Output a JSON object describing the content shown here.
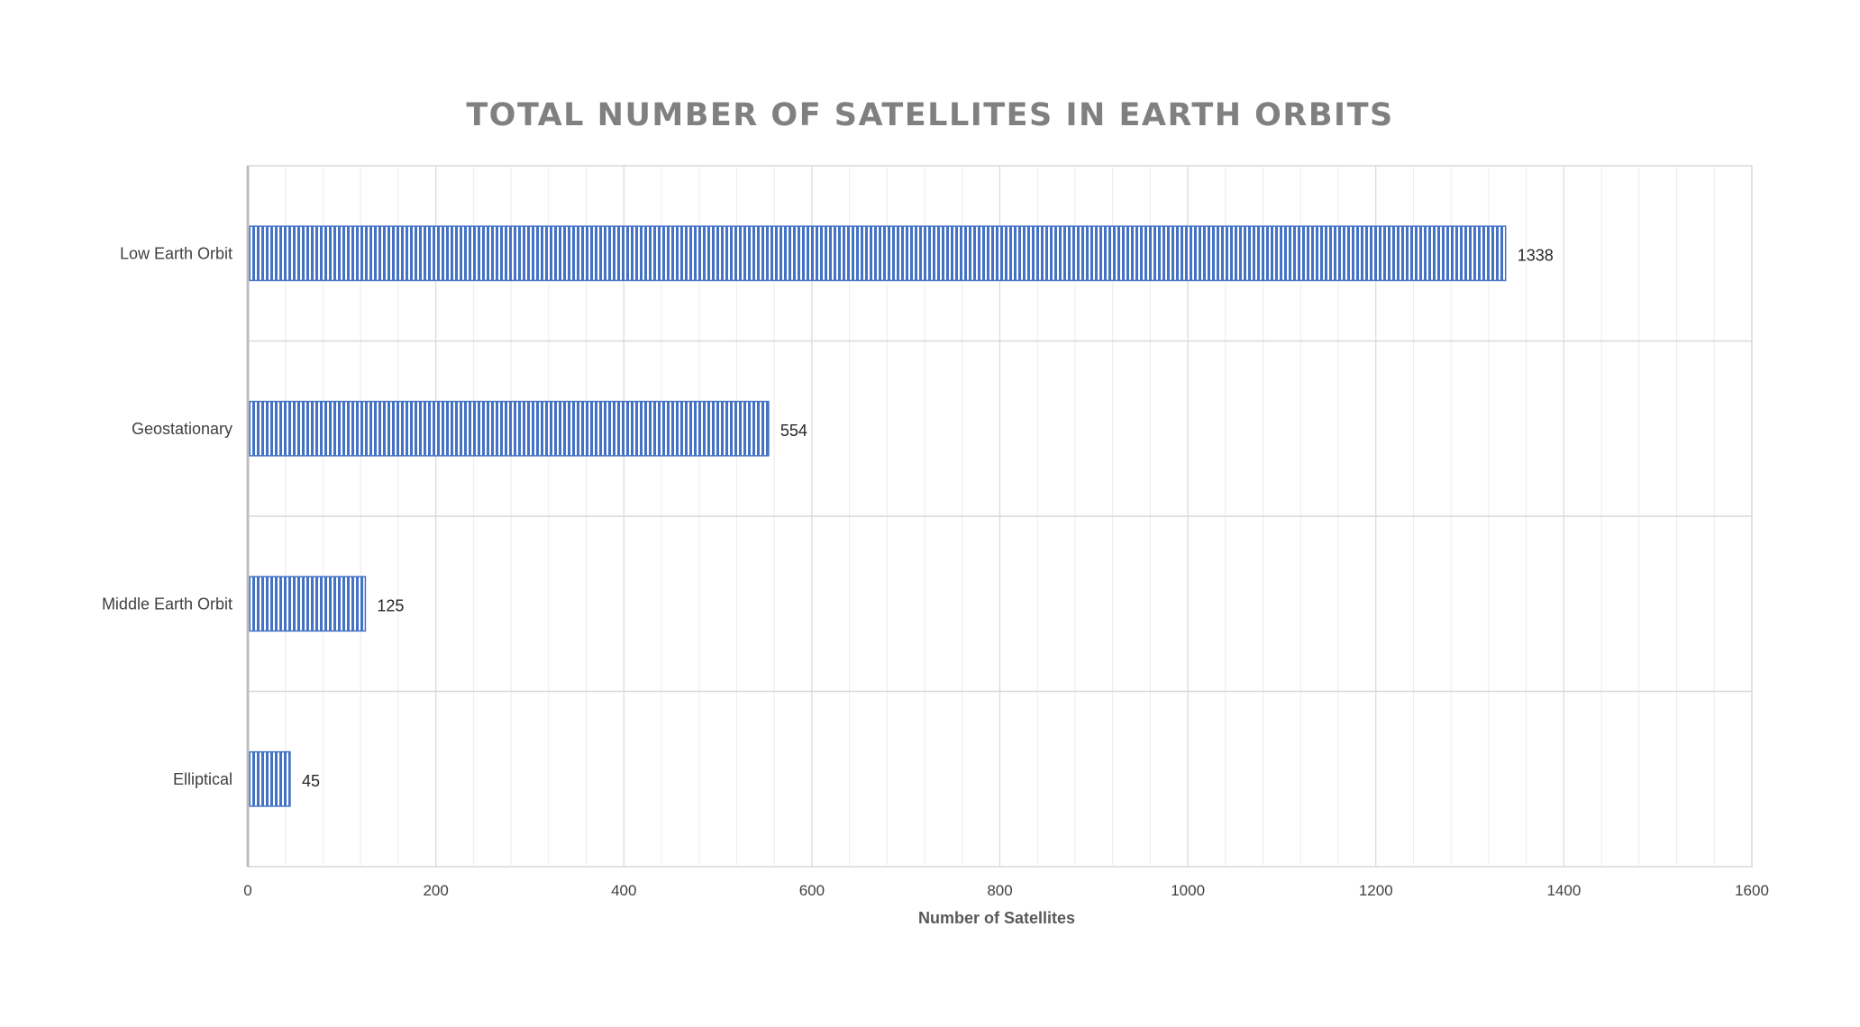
{
  "chart_data": {
    "type": "bar",
    "orientation": "horizontal",
    "title": "TOTAL NUMBER OF SATELLITES IN EARTH ORBITS",
    "xlabel": "Number of Satellites",
    "ylabel": "",
    "categories": [
      "Low Earth Orbit",
      "Geostationary",
      "Middle Earth Orbit",
      "Elliptical"
    ],
    "values": [
      1338,
      554,
      125,
      45
    ],
    "data_labels": [
      "1338",
      "554",
      "125",
      "45"
    ],
    "xlim": [
      0,
      1600
    ],
    "x_ticks": [
      0,
      200,
      400,
      600,
      800,
      1000,
      1200,
      1400,
      1600
    ],
    "grid": true,
    "legend": "none",
    "bar_color": "#4472C4",
    "bar_pattern": "vertical-stripes"
  }
}
